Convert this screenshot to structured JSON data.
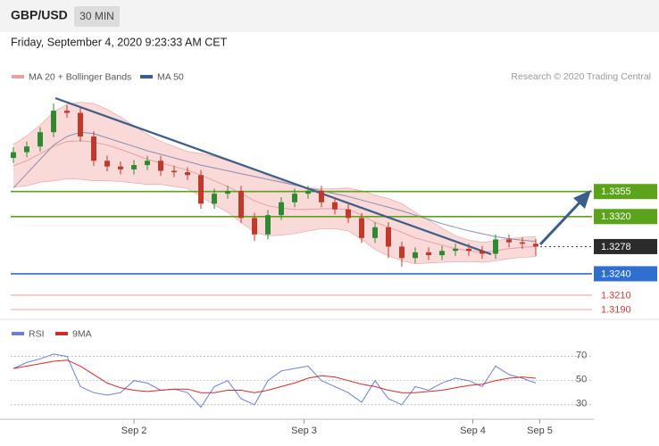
{
  "header": {
    "symbol": "GBP/USD",
    "timeframe": "30 MIN",
    "date": "Friday, September 4, 2020 9:23:33 AM CET"
  },
  "chart_data": [
    {
      "type": "candlestick",
      "credit": "Research © 2020 Trading Central",
      "xlim": [
        -1,
        43.3
      ],
      "ylim": [
        1.318,
        1.3548
      ],
      "candles": {
        "up_color": "#2f8a2f",
        "down_color": "#c0392b",
        "open": [
          1.3402,
          1.341,
          1.3418,
          1.3438,
          1.3468,
          1.3465,
          1.3432,
          1.3398,
          1.339,
          1.3386,
          1.3392,
          1.3398,
          1.3384,
          1.3382,
          1.3378,
          1.3338,
          1.3352,
          1.3356,
          1.3318,
          1.3295,
          1.3322,
          1.334,
          1.3352,
          1.3356,
          1.334,
          1.333,
          1.3318,
          1.329,
          1.3305,
          1.3278,
          1.3262,
          1.327,
          1.3266,
          1.3272,
          1.3275,
          1.3272,
          1.3268,
          1.3288,
          1.3284,
          1.3282
        ],
        "high": [
          1.3417,
          1.3425,
          1.3445,
          1.3478,
          1.3476,
          1.3472,
          1.3439,
          1.3405,
          1.3397,
          1.3399,
          1.3405,
          1.3405,
          1.3391,
          1.3389,
          1.3385,
          1.3359,
          1.3363,
          1.3363,
          1.3325,
          1.3329,
          1.3347,
          1.3359,
          1.3363,
          1.3363,
          1.3347,
          1.3337,
          1.3325,
          1.3312,
          1.3312,
          1.3285,
          1.3277,
          1.3277,
          1.3279,
          1.3282,
          1.3282,
          1.3279,
          1.3295,
          1.3295,
          1.3291,
          1.3289
        ],
        "low": [
          1.3395,
          1.3403,
          1.3411,
          1.3431,
          1.3458,
          1.3425,
          1.3391,
          1.3383,
          1.3379,
          1.3379,
          1.3385,
          1.3377,
          1.3375,
          1.3371,
          1.3331,
          1.3331,
          1.3345,
          1.3311,
          1.3286,
          1.3288,
          1.3315,
          1.3333,
          1.3345,
          1.3333,
          1.3323,
          1.3311,
          1.3283,
          1.3283,
          1.3262,
          1.325,
          1.3255,
          1.3259,
          1.3259,
          1.3265,
          1.3265,
          1.3261,
          1.3261,
          1.3277,
          1.3275,
          1.3265
        ],
        "close": [
          1.341,
          1.3418,
          1.3438,
          1.3468,
          1.3465,
          1.3432,
          1.3398,
          1.339,
          1.3386,
          1.3392,
          1.3398,
          1.3384,
          1.3382,
          1.3378,
          1.3338,
          1.3352,
          1.3356,
          1.3318,
          1.3295,
          1.3322,
          1.334,
          1.3352,
          1.3356,
          1.334,
          1.333,
          1.3318,
          1.329,
          1.3305,
          1.3278,
          1.3262,
          1.327,
          1.3266,
          1.3272,
          1.3275,
          1.3272,
          1.3268,
          1.3288,
          1.3284,
          1.3282,
          1.3278
        ]
      },
      "series": [
        {
          "name": "MA 20 + Bollinger Bands",
          "color": "#e8a0a0",
          "band_color": "#f9d2d2",
          "values": [
            1.3391,
            1.3398,
            1.3408,
            1.3418,
            1.3425,
            1.3426,
            1.3424,
            1.342,
            1.3414,
            1.3407,
            1.34,
            1.3395,
            1.339,
            1.3385,
            1.3378,
            1.337,
            1.3362,
            1.3352,
            1.3342,
            1.3335,
            1.3332,
            1.333,
            1.333,
            1.3331,
            1.3331,
            1.333,
            1.3322,
            1.3312,
            1.3305,
            1.3298,
            1.329,
            1.3285,
            1.328,
            1.3275,
            1.3272,
            1.327,
            1.3272,
            1.3275,
            1.3277,
            1.3278
          ],
          "upper": [
            1.3421,
            1.3433,
            1.3448,
            1.3466,
            1.3477,
            1.348,
            1.3478,
            1.347,
            1.3459,
            1.3447,
            1.3435,
            1.3425,
            1.3418,
            1.3411,
            1.3408,
            1.3404,
            1.3398,
            1.3392,
            1.3386,
            1.3377,
            1.337,
            1.3364,
            1.336,
            1.3359,
            1.3359,
            1.336,
            1.3356,
            1.335,
            1.3345,
            1.3338,
            1.3326,
            1.3315,
            1.3304,
            1.3293,
            1.3287,
            1.3284,
            1.3286,
            1.3289,
            1.3291,
            1.3292
          ],
          "lower": [
            1.3361,
            1.3363,
            1.3368,
            1.337,
            1.3373,
            1.3372,
            1.337,
            1.337,
            1.3369,
            1.3367,
            1.3365,
            1.3365,
            1.3362,
            1.3359,
            1.3348,
            1.3336,
            1.3326,
            1.3312,
            1.3298,
            1.3293,
            1.3294,
            1.3296,
            1.33,
            1.3303,
            1.3303,
            1.33,
            1.3288,
            1.3274,
            1.3265,
            1.3258,
            1.3254,
            1.3255,
            1.3256,
            1.3257,
            1.3257,
            1.3256,
            1.3258,
            1.3261,
            1.3263,
            1.3264
          ]
        },
        {
          "name": "MA 50",
          "color": "#3b5f8a",
          "line_color": "#8a8fb0",
          "values": [
            1.336,
            1.338,
            1.34,
            1.342,
            1.3432,
            1.3438,
            1.3436,
            1.343,
            1.3424,
            1.3418,
            1.3412,
            1.3407,
            1.3402,
            1.3397,
            1.3392,
            1.3388,
            1.3384,
            1.338,
            1.3376,
            1.3372,
            1.3368,
            1.3364,
            1.336,
            1.3356,
            1.3352,
            1.3348,
            1.3343,
            1.3338,
            1.3333,
            1.3328,
            1.3322,
            1.3316,
            1.331,
            1.3305,
            1.33,
            1.3296,
            1.3292,
            1.3289,
            1.3287,
            1.3285
          ]
        }
      ],
      "levels": [
        {
          "value": 1.3355,
          "label": "1.3355",
          "color": "#5aa31a",
          "boxed": true,
          "line": "solid"
        },
        {
          "value": 1.332,
          "label": "1.3320",
          "color": "#5aa31a",
          "boxed": true,
          "line": "solid"
        },
        {
          "value": 1.3278,
          "label": "1.3278",
          "color": "#2b2b2b",
          "boxed": true,
          "line": "dotted"
        },
        {
          "value": 1.324,
          "label": "1.3240",
          "color": "#2f6fd0",
          "boxed": true,
          "line": "solid"
        },
        {
          "value": 1.321,
          "label": "1.3210",
          "color": "#d43a3a",
          "boxed": false,
          "line": "solid"
        },
        {
          "value": 1.319,
          "label": "1.3190",
          "color": "#d43a3a",
          "boxed": false,
          "line": "solid"
        }
      ]
    },
    {
      "type": "line",
      "xlim": [
        -1,
        43.3
      ],
      "ylim": [
        18,
        83
      ],
      "yticks": [
        30,
        50,
        70
      ],
      "grid": true,
      "xticks": [
        {
          "value": 9,
          "label": "Sep 2"
        },
        {
          "value": 21.7,
          "label": "Sep 3"
        },
        {
          "value": 34.3,
          "label": "Sep 4"
        },
        {
          "value": 39.3,
          "label": "Sep 5"
        }
      ],
      "series": [
        {
          "name": "RSI",
          "color": "#6b80d0",
          "values": [
            60,
            65,
            68,
            72,
            70,
            45,
            40,
            38,
            40,
            50,
            48,
            42,
            43,
            40,
            28,
            45,
            50,
            35,
            30,
            50,
            58,
            60,
            62,
            50,
            45,
            40,
            32,
            50,
            35,
            30,
            45,
            42,
            48,
            52,
            50,
            45,
            62,
            55,
            52,
            48
          ]
        },
        {
          "name": "9MA",
          "color": "#d42a2a",
          "values": [
            60,
            62,
            64,
            66,
            67,
            62,
            55,
            48,
            44,
            42,
            41,
            42,
            43,
            43,
            40,
            40,
            42,
            42,
            40,
            42,
            45,
            48,
            52,
            54,
            53,
            50,
            47,
            45,
            42,
            40,
            40,
            41,
            42,
            44,
            46,
            47,
            50,
            52,
            53,
            52
          ]
        }
      ]
    }
  ]
}
